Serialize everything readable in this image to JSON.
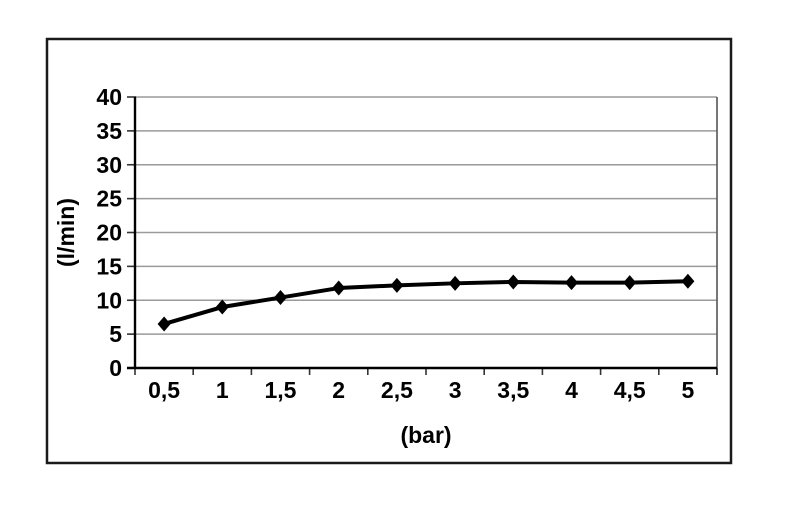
{
  "page": {
    "background": "#ffffff"
  },
  "chart": {
    "frame_border_color": "#1a1a1a",
    "plot_background": "#ffffff"
  },
  "chart_data": {
    "type": "line",
    "title": "",
    "xlabel": "(bar)",
    "ylabel": "(l/min)",
    "x": [
      0.5,
      1,
      1.5,
      2,
      2.5,
      3,
      3.5,
      4,
      4.5,
      5
    ],
    "x_tick_labels": [
      "0,5",
      "1",
      "1,5",
      "2",
      "2,5",
      "3",
      "3,5",
      "4",
      "4,5",
      "5"
    ],
    "series": [
      {
        "name": "flow-rate-curve",
        "values": [
          6.5,
          9.0,
          10.4,
          11.8,
          12.2,
          12.5,
          12.7,
          12.6,
          12.6,
          12.8
        ],
        "color": "#000000",
        "marker": "diamond"
      }
    ],
    "ylim": [
      0,
      40
    ],
    "ytick_step": 5,
    "y_tick_labels": [
      "0",
      "5",
      "10",
      "15",
      "20",
      "25",
      "30",
      "35",
      "40"
    ],
    "grid": true,
    "gridline_color": "#9a9a9a",
    "axis_color": "#000000",
    "plot_right_border_color": "#555555",
    "text_color": "#000000",
    "legend": "none"
  }
}
